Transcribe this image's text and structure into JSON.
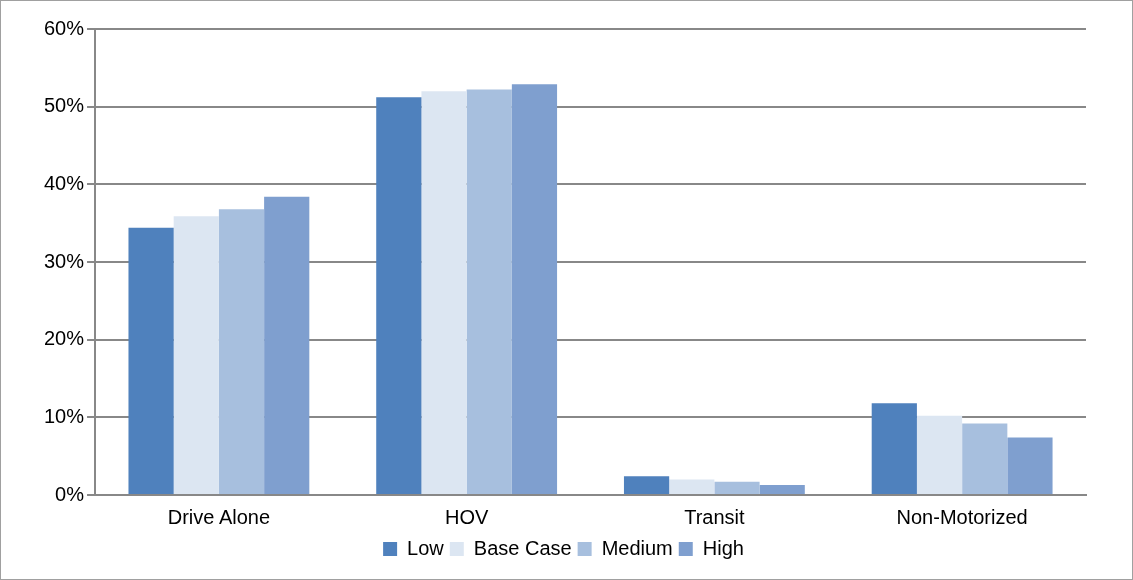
{
  "chart_data": {
    "type": "bar",
    "categories": [
      "Drive Alone",
      "HOV",
      "Transit",
      "Non-Motorized"
    ],
    "series": [
      {
        "name": "Low",
        "color": "#4f81bd",
        "values": [
          34.4,
          51.2,
          2.4,
          11.8
        ]
      },
      {
        "name": "Base Case",
        "color": "#dce6f2",
        "values": [
          35.9,
          52.0,
          2.0,
          10.2
        ]
      },
      {
        "name": "Medium",
        "color": "#a7bfde",
        "values": [
          36.8,
          52.2,
          1.7,
          9.2
        ]
      },
      {
        "name": "High",
        "color": "#7f9fcf",
        "values": [
          38.4,
          52.9,
          1.3,
          7.4
        ]
      }
    ],
    "ylim": [
      0,
      60
    ],
    "yticks": [
      {
        "value": 0,
        "label": "0%"
      },
      {
        "value": 10,
        "label": "10%"
      },
      {
        "value": 20,
        "label": "20%"
      },
      {
        "value": 30,
        "label": "30%"
      },
      {
        "value": 40,
        "label": "40%"
      },
      {
        "value": 50,
        "label": "50%"
      },
      {
        "value": 60,
        "label": "60%"
      }
    ],
    "grid": "y",
    "legend": "bottom"
  }
}
